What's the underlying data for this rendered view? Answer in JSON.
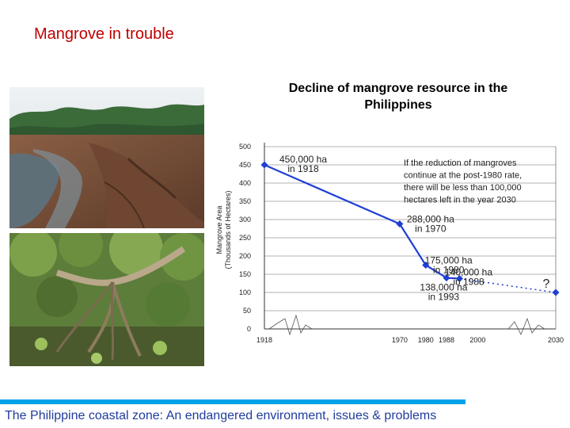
{
  "slide": {
    "title": "Mangrove in trouble",
    "footer": "The Philippine coastal zone: An endangered environment, issues & problems"
  },
  "photos": [
    {
      "name": "mangrove-clearing-photo"
    },
    {
      "name": "mangrove-roots-photo"
    }
  ],
  "chart_data": {
    "type": "line",
    "title": "Decline of mangrove resource in the Philippines",
    "ylabel_line1": "Mangrove Area",
    "ylabel_line2": "(Thousands of Hectares)",
    "xlabel": "",
    "ylim": [
      0,
      500
    ],
    "yticks": [
      0,
      50,
      100,
      150,
      200,
      250,
      300,
      350,
      400,
      450,
      500
    ],
    "xticks": [
      {
        "label": "1918",
        "value": 1918
      },
      {
        "label": "1970",
        "value": 1970
      },
      {
        "label": "1980",
        "value": 1980
      },
      {
        "label": "1988",
        "value": 1988
      },
      {
        "label": "2000",
        "value": 2000
      },
      {
        "label": "2030",
        "value": 2030
      }
    ],
    "series": [
      {
        "points": [
          {
            "x": 1918,
            "y": 450
          },
          {
            "x": 1970,
            "y": 288
          },
          {
            "x": 1980,
            "y": 175
          },
          {
            "x": 1988,
            "y": 140
          },
          {
            "x": 1993,
            "y": 138
          }
        ],
        "color": "#1f3fd6"
      }
    ],
    "projection": {
      "from": {
        "x": 1993,
        "y": 138
      },
      "to": {
        "x": 2030,
        "y": 100
      },
      "label": "?"
    },
    "labels": [
      {
        "lines": [
          "450,000 ha",
          "in 1918"
        ],
        "x": 1918,
        "y": 450
      },
      {
        "lines": [
          "288,000 ha",
          "in 1970"
        ],
        "x": 1970,
        "y": 288
      },
      {
        "lines": [
          "175,000 ha",
          "in 1980"
        ],
        "x": 1980,
        "y": 175
      },
      {
        "lines": [
          "140,000 ha",
          "in 1988"
        ],
        "x": 1988,
        "y": 140
      },
      {
        "lines": [
          "138,000 ha",
          "in 1993"
        ],
        "x": 1993,
        "y": 138
      }
    ],
    "annotation": [
      "If the reduction of mangroves",
      "continue at the post-1980 rate,",
      "there will be less than 100,000",
      "hectares left in the year 2030"
    ],
    "grid": true
  }
}
